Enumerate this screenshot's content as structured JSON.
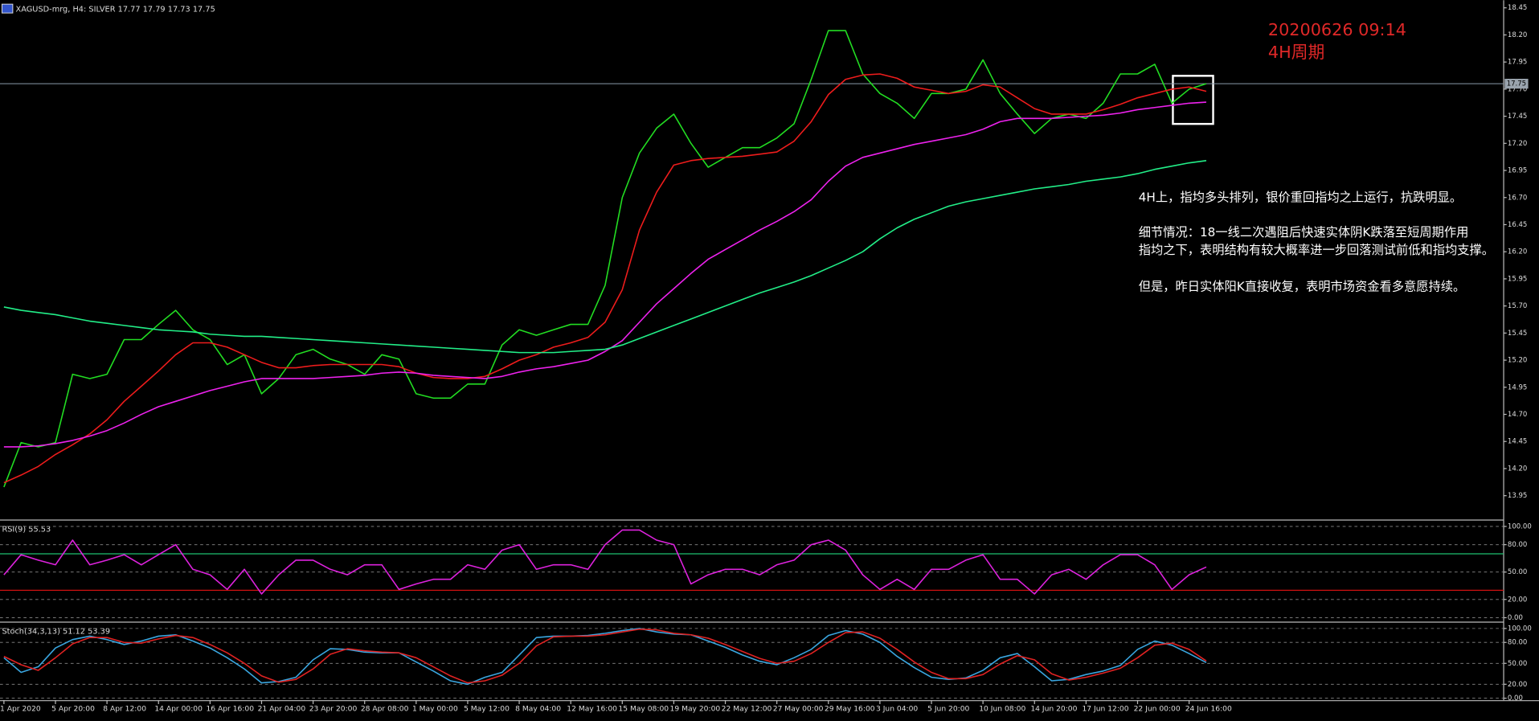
{
  "chart_data": [
    {
      "type": "line",
      "symbol": "XAGUSD-mrg, H4:  SILVER",
      "ohlc": [
        17.77,
        17.79,
        17.73,
        17.75
      ],
      "current_price": 17.75,
      "categories": [
        "1 Apr 2020",
        null,
        null,
        "5 Apr 20:00",
        null,
        null,
        "8 Apr 12:00",
        null,
        null,
        "14 Apr 00:00",
        null,
        null,
        "16 Apr 16:00",
        null,
        null,
        "21 Apr 04:00",
        null,
        null,
        "23 Apr 20:00",
        null,
        null,
        "28 Apr 08:00",
        null,
        null,
        "1 May 00:00",
        null,
        null,
        "5 May 12:00",
        null,
        null,
        "8 May 04:00",
        null,
        null,
        "12 May 16:00",
        null,
        null,
        "15 May 08:00",
        null,
        null,
        "19 May 20:00",
        null,
        null,
        "22 May 12:00",
        null,
        null,
        "27 May 00:00",
        null,
        null,
        "29 May 16:00",
        null,
        null,
        "3 Jun 04:00",
        null,
        null,
        "5 Jun 20:00",
        null,
        null,
        "10 Jun 08:00",
        null,
        null,
        "14 Jun 20:00",
        null,
        null,
        "17 Jun 12:00",
        null,
        null,
        "22 Jun 00:00",
        null,
        null,
        "24 Jun 16:00",
        null
      ],
      "series": [
        {
          "color": "#22dd22",
          "values": [
            14.03,
            14.44,
            14.4,
            14.44,
            15.07,
            15.03,
            15.07,
            15.39,
            15.39,
            15.53,
            15.66,
            15.48,
            15.39,
            15.16,
            15.25,
            14.89,
            15.03,
            15.25,
            15.3,
            15.21,
            15.16,
            15.07,
            15.25,
            15.21,
            14.89,
            14.85,
            14.85,
            14.98,
            14.98,
            15.34,
            15.48,
            15.43,
            15.48,
            15.53,
            15.53,
            15.89,
            16.7,
            17.11,
            17.34,
            17.47,
            17.2,
            16.98,
            17.07,
            17.16,
            17.16,
            17.25,
            17.38,
            17.79,
            18.24,
            18.24,
            17.84,
            17.66,
            17.57,
            17.43,
            17.66,
            17.66,
            17.7,
            17.97,
            17.66,
            17.47,
            17.29,
            17.43,
            17.47,
            17.43,
            17.57,
            17.84,
            17.84,
            17.93,
            17.57,
            17.7,
            17.75
          ]
        },
        {
          "color": "#ee1c1c",
          "values": [
            14.07,
            14.14,
            14.22,
            14.33,
            14.42,
            14.52,
            14.65,
            14.82,
            14.96,
            15.1,
            15.25,
            15.36,
            15.36,
            15.32,
            15.25,
            15.18,
            15.13,
            15.13,
            15.15,
            15.16,
            15.16,
            15.16,
            15.16,
            15.14,
            15.08,
            15.04,
            15.03,
            15.03,
            15.05,
            15.12,
            15.2,
            15.25,
            15.32,
            15.36,
            15.41,
            15.55,
            15.85,
            16.4,
            16.75,
            17.0,
            17.04,
            17.06,
            17.07,
            17.08,
            17.1,
            17.12,
            17.22,
            17.4,
            17.65,
            17.79,
            17.83,
            17.84,
            17.8,
            17.72,
            17.69,
            17.66,
            17.68,
            17.74,
            17.72,
            17.62,
            17.52,
            17.47,
            17.47,
            17.47,
            17.51,
            17.56,
            17.62,
            17.66,
            17.7,
            17.72,
            17.68
          ]
        },
        {
          "color": "#ee22ee",
          "values": [
            14.4,
            14.4,
            14.41,
            14.43,
            14.46,
            14.5,
            14.55,
            14.62,
            14.7,
            14.77,
            14.82,
            14.87,
            14.92,
            14.96,
            15.0,
            15.03,
            15.03,
            15.03,
            15.03,
            15.04,
            15.05,
            15.06,
            15.08,
            15.09,
            15.08,
            15.06,
            15.05,
            15.04,
            15.03,
            15.05,
            15.09,
            15.12,
            15.14,
            15.17,
            15.2,
            15.28,
            15.38,
            15.55,
            15.72,
            15.86,
            16.0,
            16.13,
            16.22,
            16.31,
            16.4,
            16.48,
            16.57,
            16.68,
            16.85,
            16.99,
            17.07,
            17.11,
            17.15,
            17.19,
            17.22,
            17.25,
            17.28,
            17.33,
            17.4,
            17.43,
            17.43,
            17.43,
            17.44,
            17.45,
            17.46,
            17.48,
            17.51,
            17.53,
            17.55,
            17.57,
            17.58
          ]
        },
        {
          "color": "#22ee88",
          "values": [
            15.69,
            15.66,
            15.64,
            15.62,
            15.59,
            15.56,
            15.54,
            15.52,
            15.5,
            15.48,
            15.47,
            15.46,
            15.44,
            15.43,
            15.42,
            15.42,
            15.41,
            15.4,
            15.39,
            15.38,
            15.37,
            15.36,
            15.35,
            15.34,
            15.33,
            15.32,
            15.31,
            15.3,
            15.29,
            15.28,
            15.27,
            15.27,
            15.27,
            15.28,
            15.29,
            15.3,
            15.34,
            15.4,
            15.46,
            15.52,
            15.58,
            15.64,
            15.7,
            15.76,
            15.82,
            15.87,
            15.92,
            15.98,
            16.05,
            16.12,
            16.2,
            16.32,
            16.42,
            16.5,
            16.56,
            16.62,
            16.66,
            16.69,
            16.72,
            16.75,
            16.78,
            16.8,
            16.82,
            16.85,
            16.87,
            16.89,
            16.92,
            16.96,
            16.99,
            17.02,
            17.04
          ]
        }
      ],
      "ylim": [
        13.73,
        18.52
      ],
      "yticks": [
        13.95,
        {
          "value": 14.2,
          "label": "14.20"
        },
        14.45,
        {
          "value": 14.7,
          "label": "14.70"
        },
        14.95,
        {
          "value": 15.2,
          "label": "15.20"
        },
        15.45,
        {
          "value": 15.7,
          "label": "15.70"
        },
        15.95,
        {
          "value": 16.2,
          "label": "16.20"
        },
        16.45,
        {
          "value": 16.7,
          "label": "16.70"
        },
        16.95,
        {
          "value": 17.2,
          "label": "17.20"
        },
        17.45,
        {
          "value": 17.7,
          "label": "17.70"
        },
        17.95,
        {
          "value": 18.2,
          "label": "18.20"
        },
        18.45
      ],
      "grid": false,
      "annotations": {
        "timestamp": "20200626 09:14",
        "period": "4H周期",
        "notes": [
          "4H上，指均多头排列，银价重回指均之上运行，抗跌明显。",
          "细节情况：18一线二次遇阻后快速实体阴K跌落至短周期作用",
          "指均之下，表明结构有较大概率进一步回落测试前低和指均支撑。",
          "但是，昨日实体阳K直接收复，表明市场资金看多意愿持续。"
        ]
      }
    },
    {
      "type": "line",
      "title": "RSI(9)",
      "current_values": [
        55.53
      ],
      "series": [
        {
          "color": "#dd22dd",
          "values": [
            47,
            69,
            63,
            58,
            85,
            58,
            63,
            69,
            58,
            69,
            80,
            53,
            47,
            31,
            53,
            26,
            47,
            63,
            63,
            53,
            47,
            58,
            58,
            31,
            37,
            42,
            42,
            58,
            53,
            74,
            80,
            53,
            58,
            58,
            53,
            80,
            96,
            96,
            85,
            80,
            37,
            47,
            53,
            53,
            47,
            58,
            63,
            80,
            85,
            74,
            47,
            31,
            42,
            31,
            53,
            53,
            63,
            69,
            42,
            42,
            26,
            47,
            53,
            42,
            58,
            69,
            69,
            58,
            31,
            47,
            55.53
          ]
        }
      ],
      "levels": [
        {
          "value": 70,
          "color": "#1fbf6f"
        },
        {
          "value": 30,
          "color": "#d01010"
        }
      ],
      "ylim": [
        -4.3,
        105.4
      ],
      "yticks": [
        {
          "value": 0,
          "label": "0.00"
        },
        {
          "value": 20,
          "label": "20.00"
        },
        {
          "value": 50,
          "label": "50.00"
        },
        {
          "value": 80,
          "label": "80.00"
        },
        {
          "value": 100,
          "label": "100.00"
        }
      ],
      "grid": true
    },
    {
      "type": "line",
      "title": "Stoch(34,3,13)",
      "current_values": [
        51.12,
        53.39
      ],
      "series": [
        {
          "color": "#3aa6e0",
          "values": [
            58,
            37,
            45,
            72,
            84,
            89,
            84,
            77,
            82,
            89,
            91,
            82,
            72,
            58,
            42,
            22,
            24,
            30,
            55,
            71,
            70,
            66,
            65,
            65,
            52,
            39,
            25,
            20,
            30,
            37,
            62,
            87,
            89,
            89,
            90,
            93,
            97,
            100,
            95,
            92,
            91,
            82,
            73,
            62,
            53,
            48,
            58,
            70,
            90,
            97,
            92,
            80,
            60,
            44,
            30,
            27,
            29,
            40,
            58,
            64,
            45,
            25,
            27,
            34,
            39,
            47,
            70,
            82,
            76,
            64,
            51.12
          ]
        },
        {
          "color": "#e02222",
          "values": [
            60,
            48,
            40,
            58,
            78,
            87,
            87,
            80,
            79,
            85,
            90,
            87,
            77,
            65,
            50,
            32,
            23,
            27,
            42,
            63,
            71,
            68,
            66,
            65,
            58,
            45,
            32,
            22,
            25,
            33,
            50,
            75,
            88,
            89,
            89,
            91,
            95,
            99,
            98,
            93,
            91,
            86,
            77,
            67,
            57,
            50,
            53,
            64,
            80,
            94,
            95,
            86,
            70,
            52,
            37,
            28,
            28,
            34,
            49,
            61,
            55,
            35,
            26,
            30,
            36,
            43,
            58,
            76,
            79,
            70,
            53.39
          ]
        }
      ],
      "ylim": [
        -2.8,
        107
      ],
      "yticks": [
        {
          "value": 0,
          "label": "0.00"
        },
        {
          "value": 20,
          "label": "20.00"
        },
        {
          "value": 50,
          "label": "50.00"
        },
        {
          "value": 80,
          "label": "80.00"
        },
        {
          "value": 100,
          "label": "100.00"
        }
      ],
      "grid": true
    }
  ]
}
